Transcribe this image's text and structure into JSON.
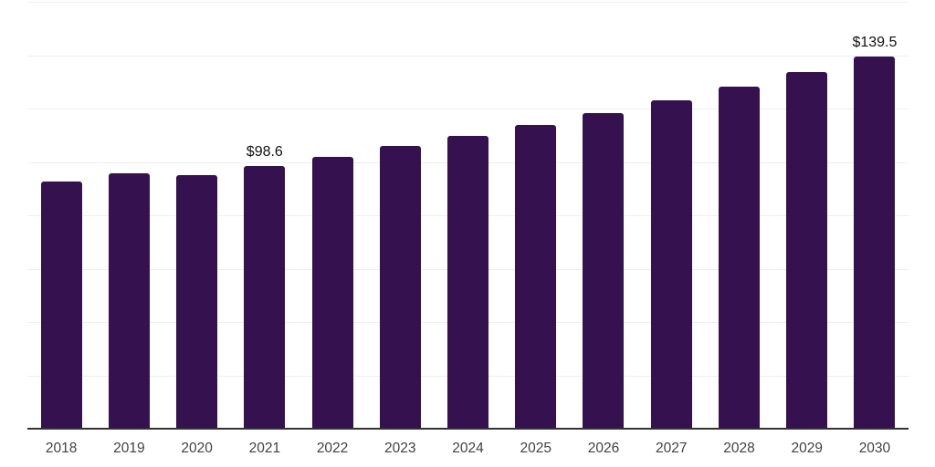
{
  "chart_data": {
    "type": "bar",
    "title": "",
    "xlabel": "",
    "ylabel": "",
    "categories": [
      "2018",
      "2019",
      "2020",
      "2021",
      "2022",
      "2023",
      "2024",
      "2025",
      "2026",
      "2027",
      "2028",
      "2029",
      "2030"
    ],
    "values": [
      92.5,
      95.8,
      95.2,
      98.6,
      102.0,
      106.1,
      109.6,
      114.0,
      118.3,
      123.1,
      128.2,
      133.6,
      139.5
    ],
    "point_labels": [
      null,
      null,
      null,
      "$98.6",
      null,
      null,
      null,
      null,
      null,
      null,
      null,
      null,
      "$139.5"
    ],
    "ylim": [
      0,
      160
    ],
    "gridline_values": [
      20,
      40,
      60,
      80,
      100,
      120,
      140,
      160
    ],
    "grid": "horizontal",
    "y_tick_labels_visible": false,
    "legend_position": "none",
    "colors": {
      "bar": "#36114F",
      "gridline": "#EFEFEF",
      "axis_line": "#333333",
      "tick_label": "#424242",
      "data_label": "#111111",
      "background": "#FFFFFF"
    }
  }
}
